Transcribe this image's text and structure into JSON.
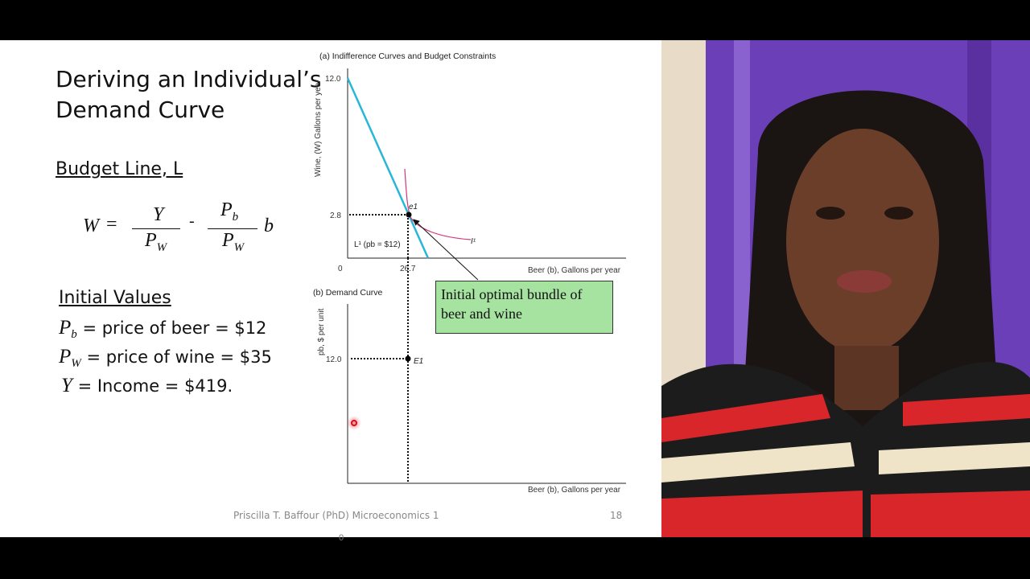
{
  "slide": {
    "title_line1": "Deriving an Individual’s",
    "title_line2": "Demand Curve",
    "budget_heading": "Budget Line, L",
    "equation": {
      "lhs": "W",
      "eq": "=",
      "num1": "Y",
      "den1": "P",
      "den1_sub": "W",
      "minus": "-",
      "num2": "P",
      "num2_sub": "b",
      "den2": "P",
      "den2_sub": "W",
      "tail": "b"
    },
    "initial_heading": "Initial Values",
    "values": [
      {
        "sym": "P",
        "sub": "b",
        "text": " = price of beer = $12"
      },
      {
        "sym": "P",
        "sub": "W",
        "text": " = price of wine = $35"
      },
      {
        "sym": "Y",
        "sub": "",
        "text": " = Income = $419."
      }
    ],
    "footer": "Priscilla T. Baffour (PhD) Microeconomics 1",
    "page_number": "18",
    "stray_zero": "0"
  },
  "chart_a": {
    "title": "(a) Indifference Curves and Budget Constraints",
    "ylabel": "Wine, (W) Gallons per year",
    "xlabel": "Beer (b), Gallons per year",
    "origin": "0",
    "y_ticks": [
      "12.0",
      "2.8"
    ],
    "x_ticks": [
      "26.7"
    ],
    "budget_label": "L¹ (pb = $12)",
    "point_label": "e1",
    "curve_label": "I¹",
    "budget_color": "#29b6d8",
    "curve_color": "#d0357a"
  },
  "chart_b": {
    "title": "(b) Demand Curve",
    "ylabel": "pb, $ per unit",
    "xlabel": "Beer (b), Gallons per year",
    "y_ticks": [
      "12.0"
    ],
    "point_label": "E1"
  },
  "callout": {
    "text": "Initial optimal bundle of beer and wine",
    "color": "#a6e3a1"
  }
}
